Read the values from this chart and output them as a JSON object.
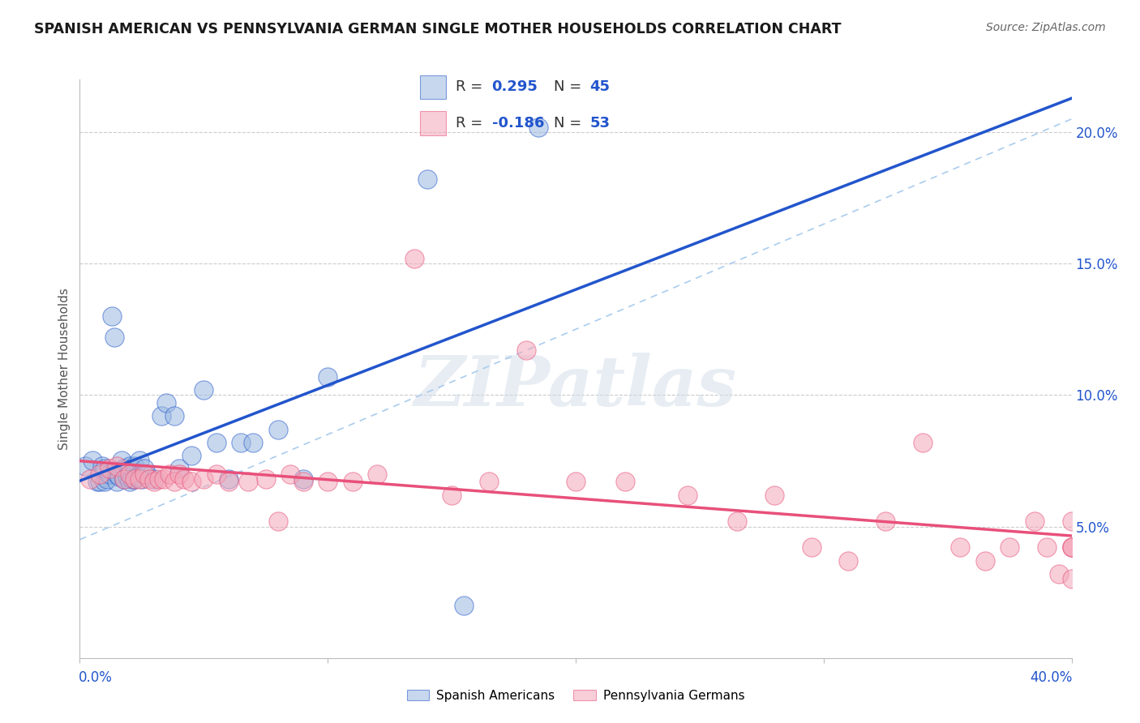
{
  "title": "SPANISH AMERICAN VS PENNSYLVANIA GERMAN SINGLE MOTHER HOUSEHOLDS CORRELATION CHART",
  "source": "Source: ZipAtlas.com",
  "ylabel": "Single Mother Households",
  "watermark": "ZIPatlas",
  "blue_R": 0.295,
  "blue_N": 45,
  "pink_R": -0.186,
  "pink_N": 53,
  "blue_color": "#9ab8e0",
  "pink_color": "#f4a7b9",
  "blue_line_color": "#2255cc",
  "pink_line_color": "#e8507a",
  "dashed_line_color": "#aaccee",
  "background_color": "#ffffff",
  "grid_color": "#cccccc",
  "xlim": [
    0.0,
    0.4
  ],
  "ylim": [
    0.0,
    0.22
  ],
  "yticks": [
    0.05,
    0.1,
    0.15,
    0.2
  ],
  "ytick_labels": [
    "5.0%",
    "10.0%",
    "15.0%",
    "20.0%"
  ],
  "blue_x": [
    0.002,
    0.005,
    0.007,
    0.008,
    0.009,
    0.01,
    0.01,
    0.011,
    0.012,
    0.013,
    0.014,
    0.015,
    0.015,
    0.016,
    0.017,
    0.018,
    0.018,
    0.019,
    0.02,
    0.02,
    0.021,
    0.022,
    0.022,
    0.023,
    0.024,
    0.025,
    0.026,
    0.027,
    0.03,
    0.033,
    0.035,
    0.038,
    0.04,
    0.045,
    0.05,
    0.055,
    0.06,
    0.065,
    0.07,
    0.08,
    0.09,
    0.1,
    0.14,
    0.155,
    0.185
  ],
  "blue_y": [
    0.073,
    0.075,
    0.067,
    0.067,
    0.073,
    0.067,
    0.072,
    0.068,
    0.07,
    0.13,
    0.122,
    0.067,
    0.07,
    0.069,
    0.075,
    0.068,
    0.072,
    0.069,
    0.067,
    0.073,
    0.068,
    0.068,
    0.073,
    0.069,
    0.075,
    0.068,
    0.072,
    0.07,
    0.068,
    0.092,
    0.097,
    0.092,
    0.072,
    0.077,
    0.102,
    0.082,
    0.068,
    0.082,
    0.082,
    0.087,
    0.068,
    0.107,
    0.182,
    0.02,
    0.202
  ],
  "pink_x": [
    0.004,
    0.008,
    0.012,
    0.015,
    0.018,
    0.02,
    0.022,
    0.024,
    0.026,
    0.028,
    0.03,
    0.032,
    0.034,
    0.036,
    0.038,
    0.04,
    0.042,
    0.045,
    0.05,
    0.055,
    0.06,
    0.068,
    0.075,
    0.08,
    0.085,
    0.09,
    0.1,
    0.11,
    0.12,
    0.135,
    0.15,
    0.165,
    0.18,
    0.2,
    0.22,
    0.245,
    0.265,
    0.28,
    0.295,
    0.31,
    0.325,
    0.34,
    0.355,
    0.365,
    0.375,
    0.385,
    0.39,
    0.395,
    0.4,
    0.4,
    0.4,
    0.4,
    0.4
  ],
  "pink_y": [
    0.068,
    0.07,
    0.072,
    0.073,
    0.068,
    0.07,
    0.068,
    0.068,
    0.07,
    0.068,
    0.067,
    0.068,
    0.068,
    0.07,
    0.067,
    0.07,
    0.068,
    0.067,
    0.068,
    0.07,
    0.067,
    0.067,
    0.068,
    0.052,
    0.07,
    0.067,
    0.067,
    0.067,
    0.07,
    0.152,
    0.062,
    0.067,
    0.117,
    0.067,
    0.067,
    0.062,
    0.052,
    0.062,
    0.042,
    0.037,
    0.052,
    0.082,
    0.042,
    0.037,
    0.042,
    0.052,
    0.042,
    0.032,
    0.052,
    0.042,
    0.03,
    0.042,
    0.042
  ]
}
